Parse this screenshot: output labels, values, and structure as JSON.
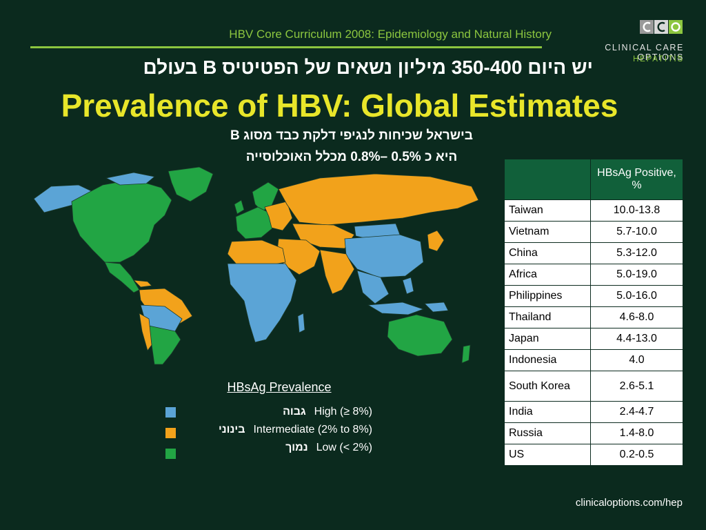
{
  "header": {
    "course": "HBV Core Curriculum 2008: Epidemiology and Natural History",
    "brand_line1": "CLINICAL CARE OPTIONS",
    "brand_line2": "HEPATITIS",
    "logo_letters": "CCO"
  },
  "hebrew_headline": "יש היום 350-400 מיליון נשאים של הפטיטיס  B  בעולם",
  "title": "Prevalence of HBV: Global Estimates",
  "hebrew_note": {
    "line1": "בישראל שכיחות לנגיפי דלקת כבד מסוג B",
    "line2": "היא כ 0.5% –0.8% מכלל האוכלוסייה"
  },
  "legend": {
    "title": "HBsAg Prevalence",
    "items": [
      {
        "label": "High (≥ 8%)",
        "hebrew": "גבוה",
        "color": "#5ba4d6"
      },
      {
        "label": "Intermediate (2% to 8%)",
        "hebrew": "בינוני",
        "color": "#f2a21b"
      },
      {
        "label": "Low (< 2%)",
        "hebrew": "נמוך",
        "color": "#22a544"
      }
    ]
  },
  "table": {
    "header": "HBsAg Positive, %",
    "rows": [
      {
        "country": "Taiwan",
        "value": "10.0-13.8"
      },
      {
        "country": "Vietnam",
        "value": "5.7-10.0"
      },
      {
        "country": "China",
        "value": "5.3-12.0"
      },
      {
        "country": "Africa",
        "value": "5.0-19.0"
      },
      {
        "country": "Philippines",
        "value": "5.0-16.0"
      },
      {
        "country": "Thailand",
        "value": "4.6-8.0"
      },
      {
        "country": "Japan",
        "value": "4.4-13.0"
      },
      {
        "country": "Indonesia",
        "value": "4.0"
      },
      {
        "country": "South Korea",
        "value": "2.6-5.1"
      },
      {
        "country": "India",
        "value": "2.4-4.7"
      },
      {
        "country": "Russia",
        "value": "1.4-8.0"
      },
      {
        "country": "US",
        "value": "0.2-0.5"
      }
    ]
  },
  "footer": "clinicaloptions.com/hep",
  "colors": {
    "background": "#0b2a1e",
    "accent_green": "#8cc63f",
    "title_yellow": "#e8e62a",
    "table_header": "#11603a"
  }
}
